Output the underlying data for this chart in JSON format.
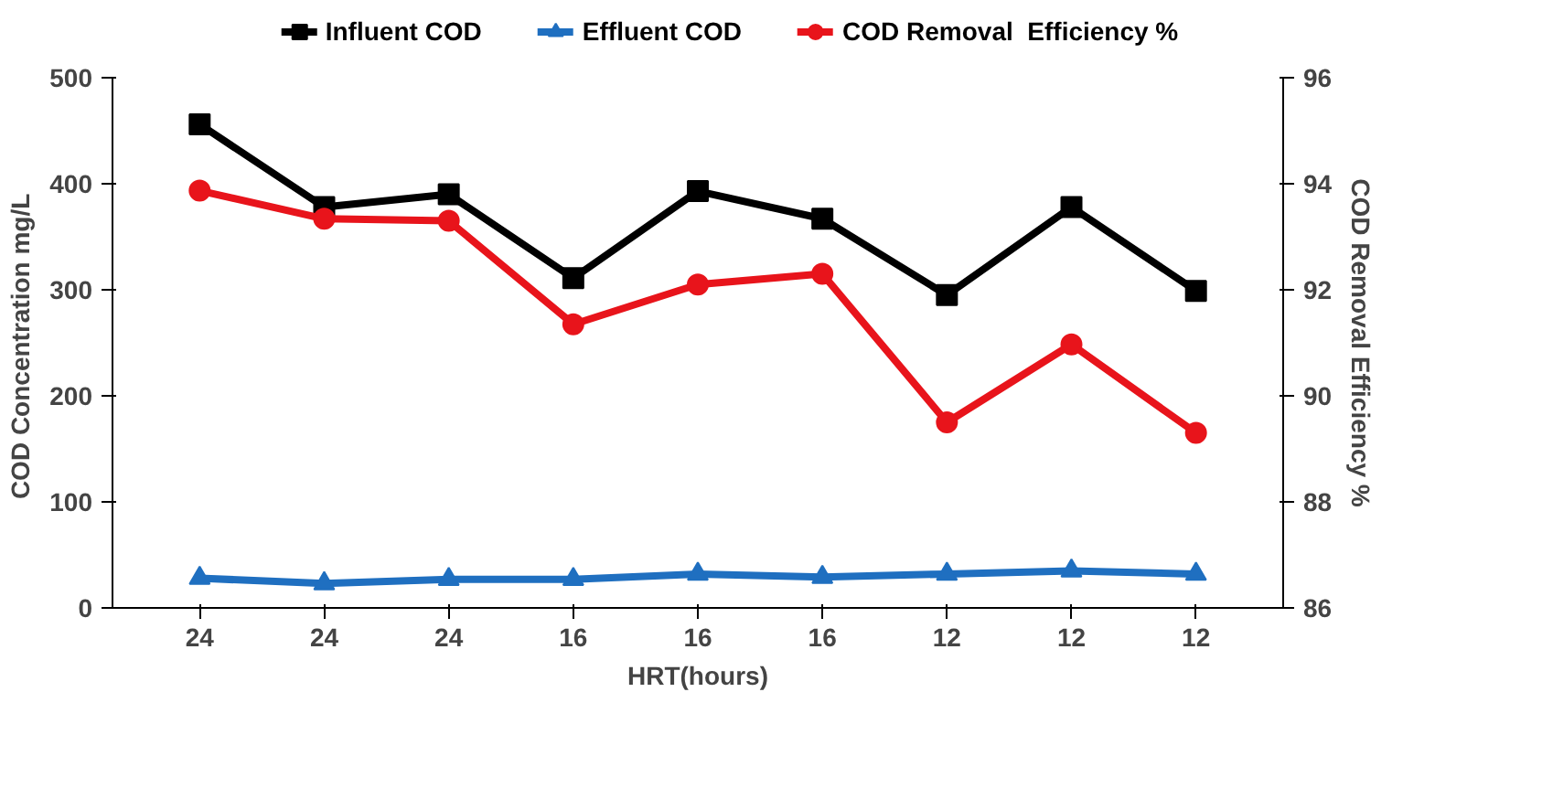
{
  "chart_data": {
    "type": "line",
    "xlabel": "HRT(hours)",
    "ylabel": "COD Concentration  mg/L",
    "y2label": "COD Removal Efficiency %",
    "categories": [
      "24",
      "24",
      "24",
      "16",
      "16",
      "16",
      "12",
      "12",
      "12"
    ],
    "ylim": [
      0,
      500
    ],
    "yticks": [
      0,
      100,
      200,
      300,
      400,
      500
    ],
    "y2lim": [
      86,
      96
    ],
    "y2ticks": [
      86,
      88,
      90,
      92,
      94,
      96
    ],
    "grid": false,
    "legend": "top",
    "line_style": "solid",
    "series": [
      {
        "name": "Influent COD",
        "color": "#000000",
        "marker": "square",
        "values": [
          456,
          378,
          390,
          311,
          393,
          367,
          295,
          378,
          299
        ]
      },
      {
        "name": "Effluent COD",
        "color": "#1f6fc0",
        "marker": "triangle",
        "values": [
          28,
          23,
          27,
          27,
          32,
          29,
          32,
          35,
          32
        ]
      },
      {
        "name": "COD Removal  Efficiency %",
        "color": "#e8141b",
        "marker": "circle",
        "axis": "y2",
        "values": [
          93.87,
          93.34,
          93.3,
          91.35,
          92.1,
          92.3,
          89.5,
          90.97,
          89.3
        ]
      }
    ]
  }
}
